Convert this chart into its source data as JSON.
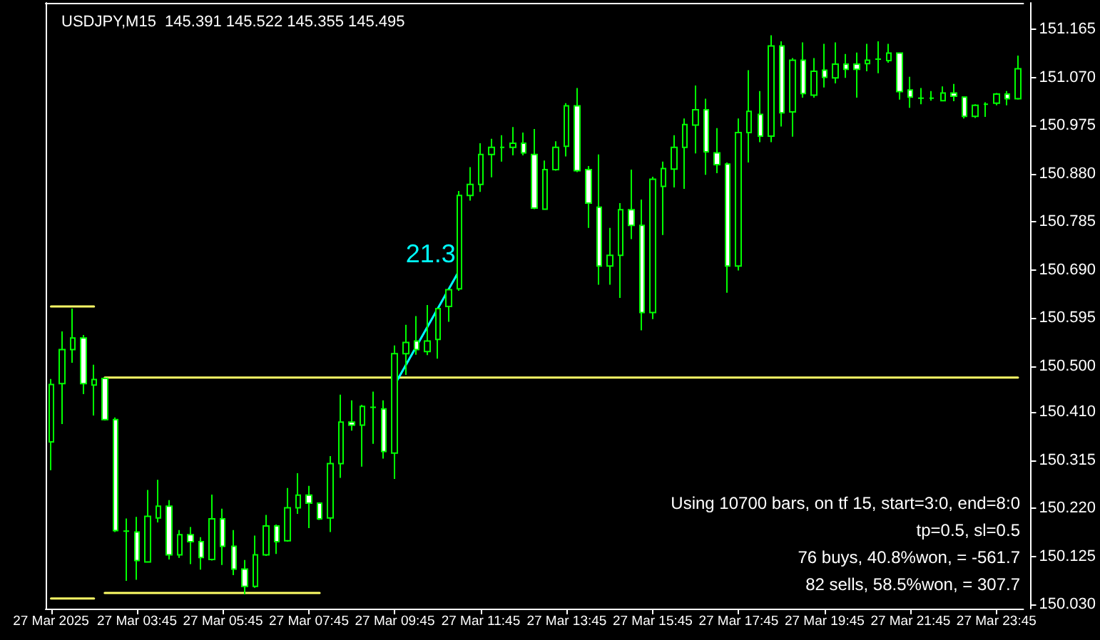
{
  "chart_data": {
    "type": "candlestick",
    "title": "USDJPY,M15  145.391 145.522 145.355 145.495",
    "color": "#00ff00",
    "marker": "none",
    "categories": [
      "27 Mar 2025",
      null,
      null,
      null,
      null,
      null,
      null,
      null,
      "27 Mar 03:45",
      null,
      null,
      null,
      null,
      null,
      null,
      null,
      "27 Mar 05:45",
      null,
      null,
      null,
      null,
      null,
      null,
      null,
      "27 Mar 07:45",
      null,
      null,
      null,
      null,
      null,
      null,
      null,
      "27 Mar 09:45",
      null,
      null,
      null,
      null,
      null,
      null,
      null,
      "27 Mar 11:45",
      null,
      null,
      null,
      null,
      null,
      null,
      null,
      "27 Mar 13:45",
      null,
      null,
      null,
      null,
      null,
      null,
      null,
      "27 Mar 15:45",
      null,
      null,
      null,
      null,
      null,
      null,
      null,
      "27 Mar 17:45",
      null,
      null,
      null,
      null,
      null,
      null,
      null,
      "27 Mar 19:45",
      null,
      null,
      null,
      null,
      null,
      null,
      null,
      "27 Mar 21:45",
      null,
      null,
      null,
      null,
      null,
      null,
      null,
      "27 Mar 23:45",
      null,
      null
    ],
    "ohlc": [
      [
        150.351,
        150.475,
        150.295,
        150.464
      ],
      [
        150.466,
        150.569,
        150.386,
        150.533
      ],
      [
        150.533,
        150.614,
        150.507,
        150.556
      ],
      [
        150.556,
        150.562,
        150.445,
        150.466
      ],
      [
        150.463,
        150.503,
        150.403,
        150.474
      ],
      [
        150.476,
        150.478,
        150.393,
        150.395
      ],
      [
        150.395,
        150.399,
        150.173,
        150.176
      ],
      [
        150.175,
        150.2,
        150.077,
        150.175
      ],
      [
        150.173,
        150.203,
        150.079,
        150.117
      ],
      [
        150.114,
        150.256,
        150.114,
        150.204
      ],
      [
        150.201,
        150.276,
        150.192,
        150.224
      ],
      [
        150.224,
        150.236,
        150.119,
        150.128
      ],
      [
        150.128,
        150.177,
        150.122,
        150.168
      ],
      [
        150.168,
        150.183,
        150.11,
        150.154
      ],
      [
        150.154,
        150.163,
        150.099,
        150.123
      ],
      [
        150.119,
        150.247,
        150.117,
        150.199
      ],
      [
        150.199,
        150.219,
        150.108,
        150.145
      ],
      [
        150.145,
        150.177,
        150.088,
        150.1
      ],
      [
        150.1,
        150.118,
        150.05,
        150.066
      ],
      [
        150.066,
        150.166,
        150.063,
        150.128
      ],
      [
        150.128,
        150.207,
        150.126,
        150.185
      ],
      [
        150.185,
        150.188,
        150.13,
        150.154
      ],
      [
        150.156,
        150.26,
        150.154,
        150.221
      ],
      [
        150.221,
        150.289,
        150.209,
        150.246
      ],
      [
        150.246,
        150.264,
        150.181,
        150.23
      ],
      [
        150.23,
        150.231,
        150.197,
        150.199
      ],
      [
        150.201,
        150.323,
        150.173,
        150.308
      ],
      [
        150.308,
        150.444,
        150.28,
        150.39
      ],
      [
        150.39,
        150.433,
        150.373,
        150.384
      ],
      [
        150.384,
        150.424,
        150.302,
        150.421
      ],
      [
        150.419,
        150.45,
        150.347,
        150.419
      ],
      [
        150.416,
        150.433,
        150.318,
        150.332
      ],
      [
        150.329,
        150.541,
        150.278,
        150.525
      ],
      [
        150.525,
        150.582,
        150.483,
        150.547
      ],
      [
        150.55,
        150.599,
        150.523,
        150.533
      ],
      [
        150.529,
        150.621,
        150.522,
        150.55
      ],
      [
        150.553,
        150.614,
        150.515,
        150.614
      ],
      [
        150.618,
        150.652,
        150.588,
        150.651
      ],
      [
        150.653,
        150.846,
        150.649,
        150.837
      ],
      [
        150.837,
        150.893,
        150.827,
        150.859
      ],
      [
        150.859,
        150.94,
        150.844,
        150.918
      ],
      [
        150.918,
        150.949,
        150.873,
        150.932
      ],
      [
        150.932,
        150.956,
        150.904,
        150.932
      ],
      [
        150.932,
        150.972,
        150.916,
        150.94
      ],
      [
        150.94,
        150.961,
        150.916,
        150.921
      ],
      [
        150.918,
        150.968,
        150.81,
        150.812
      ],
      [
        150.81,
        150.906,
        150.81,
        150.888
      ],
      [
        150.888,
        150.944,
        150.886,
        150.932
      ],
      [
        150.934,
        151.019,
        150.914,
        151.014
      ],
      [
        151.014,
        151.049,
        150.883,
        150.886
      ],
      [
        150.888,
        150.895,
        150.773,
        150.822
      ],
      [
        150.814,
        150.918,
        150.661,
        150.698
      ],
      [
        150.698,
        150.773,
        150.661,
        150.719
      ],
      [
        150.719,
        150.822,
        150.635,
        150.809
      ],
      [
        150.809,
        150.888,
        150.751,
        150.778
      ],
      [
        150.778,
        150.829,
        150.571,
        150.606
      ],
      [
        150.606,
        150.874,
        150.593,
        150.869
      ],
      [
        150.855,
        150.904,
        150.759,
        150.89
      ],
      [
        150.889,
        150.956,
        150.853,
        150.932
      ],
      [
        150.932,
        150.989,
        150.85,
        150.977
      ],
      [
        150.976,
        151.054,
        150.92,
        151.006
      ],
      [
        151.006,
        151.028,
        150.878,
        150.923
      ],
      [
        150.921,
        150.97,
        150.881,
        150.898
      ],
      [
        150.899,
        150.902,
        150.645,
        150.698
      ],
      [
        150.698,
        150.989,
        150.689,
        150.961
      ],
      [
        150.961,
        151.084,
        150.902,
        151.003
      ],
      [
        150.997,
        151.043,
        150.942,
        150.954
      ],
      [
        150.954,
        151.153,
        150.942,
        151.132
      ],
      [
        151.132,
        151.141,
        150.973,
        151.0
      ],
      [
        151.002,
        151.108,
        150.953,
        151.104
      ],
      [
        151.104,
        151.139,
        151.03,
        151.038
      ],
      [
        151.035,
        151.108,
        151.03,
        151.082
      ],
      [
        151.084,
        151.136,
        151.05,
        151.07
      ],
      [
        151.069,
        151.139,
        151.058,
        151.096
      ],
      [
        151.096,
        151.116,
        151.069,
        151.086
      ],
      [
        151.096,
        151.119,
        151.03,
        151.086
      ],
      [
        151.097,
        151.136,
        151.082,
        151.104
      ],
      [
        151.106,
        151.141,
        151.078,
        151.106
      ],
      [
        151.103,
        151.136,
        151.099,
        151.118
      ],
      [
        151.118,
        151.118,
        151.026,
        151.042
      ],
      [
        151.045,
        151.071,
        151.01,
        151.031
      ],
      [
        151.029,
        151.049,
        151.017,
        151.029
      ],
      [
        151.029,
        151.043,
        151.024,
        151.029
      ],
      [
        151.024,
        151.052,
        151.024,
        151.039
      ],
      [
        151.039,
        151.057,
        151.023,
        151.033
      ],
      [
        151.031,
        151.031,
        150.989,
        150.993
      ],
      [
        150.993,
        151.017,
        150.99,
        151.015
      ],
      [
        151.017,
        151.021,
        150.992,
        151.017
      ],
      [
        151.019,
        151.039,
        151.015,
        151.037
      ],
      [
        151.037,
        151.043,
        151.015,
        151.028
      ],
      [
        151.028,
        151.113,
        151.026,
        151.087
      ]
    ],
    "series": [
      {
        "type": "line",
        "color": "#ffff66",
        "values": [
          150.618,
          150.618,
          150.618,
          150.618,
          150.618,
          null,
          null,
          null,
          null,
          null,
          null,
          null,
          null,
          null,
          null,
          null,
          null,
          null,
          null,
          null,
          null,
          null,
          null,
          null,
          null,
          null,
          null,
          null,
          null,
          null,
          null,
          null,
          null,
          null,
          null,
          null,
          null,
          null,
          null,
          null,
          null,
          null,
          null,
          null,
          null,
          null,
          null,
          null,
          null,
          null,
          null,
          null,
          null,
          null,
          null,
          null,
          null,
          null,
          null,
          null,
          null,
          null,
          null,
          null,
          null,
          null,
          null,
          null,
          null,
          null,
          null,
          null,
          null,
          null,
          null,
          null,
          null,
          null,
          null,
          null,
          null,
          null,
          null,
          null,
          null,
          null,
          null,
          null,
          null,
          null,
          null
        ]
      },
      {
        "type": "line",
        "color": "#ffff66",
        "values": [
          150.042,
          150.042,
          150.042,
          150.042,
          150.042,
          null,
          null,
          null,
          null,
          null,
          null,
          null,
          null,
          null,
          null,
          null,
          null,
          null,
          null,
          null,
          null,
          null,
          null,
          null,
          null,
          null,
          null,
          null,
          null,
          null,
          null,
          null,
          null,
          null,
          null,
          null,
          null,
          null,
          null,
          null,
          null,
          null,
          null,
          null,
          null,
          null,
          null,
          null,
          null,
          null,
          null,
          null,
          null,
          null,
          null,
          null,
          null,
          null,
          null,
          null,
          null,
          null,
          null,
          null,
          null,
          null,
          null,
          null,
          null,
          null,
          null,
          null,
          null,
          null,
          null,
          null,
          null,
          null,
          null,
          null,
          null,
          null,
          null,
          null,
          null,
          null,
          null,
          null,
          null,
          null,
          null
        ]
      },
      {
        "type": "line",
        "color": "#ffff66",
        "values": [
          null,
          null,
          null,
          null,
          null,
          150.478,
          150.478,
          150.478,
          150.478,
          150.478,
          150.478,
          150.478,
          150.478,
          150.478,
          150.478,
          150.478,
          150.478,
          150.478,
          150.478,
          150.478,
          150.478,
          150.478,
          150.478,
          150.478,
          150.478,
          150.478,
          150.478,
          150.478,
          150.478,
          150.478,
          150.478,
          150.478,
          150.478,
          150.478,
          150.478,
          150.478,
          150.478,
          150.478,
          150.478,
          150.478,
          150.478,
          150.478,
          150.478,
          150.478,
          150.478,
          150.478,
          150.478,
          150.478,
          150.478,
          150.478,
          150.478,
          150.478,
          150.478,
          150.478,
          150.478,
          150.478,
          150.478,
          150.478,
          150.478,
          150.478,
          150.478,
          150.478,
          150.478,
          150.478,
          150.478,
          150.478,
          150.478,
          150.478,
          150.478,
          150.478,
          150.478,
          150.478,
          150.478,
          150.478,
          150.478,
          150.478,
          150.478,
          150.478,
          150.478,
          150.478,
          150.478,
          150.478,
          150.478,
          150.478,
          150.478,
          150.478,
          150.478,
          150.478,
          150.478,
          150.478,
          150.478
        ]
      },
      {
        "type": "line",
        "color": "#ffff66",
        "values": [
          null,
          null,
          null,
          null,
          null,
          150.053,
          150.053,
          150.053,
          150.053,
          150.053,
          150.053,
          150.053,
          150.053,
          150.053,
          150.053,
          150.053,
          150.053,
          150.053,
          150.053,
          150.053,
          150.053,
          150.053,
          150.053,
          150.053,
          150.053,
          150.053,
          null,
          null,
          null,
          null,
          null,
          null,
          null,
          null,
          null,
          null,
          null,
          null,
          null,
          null,
          null,
          null,
          null,
          null,
          null,
          null,
          null,
          null,
          null,
          null,
          null,
          null,
          null,
          null,
          null,
          null,
          null,
          null,
          null,
          null,
          null,
          null,
          null,
          null,
          null,
          null,
          null,
          null,
          null,
          null,
          null,
          null,
          null,
          null,
          null,
          null,
          null,
          null,
          null,
          null,
          null,
          null,
          null,
          null,
          null,
          null,
          null,
          null,
          null,
          null,
          null
        ]
      },
      {
        "type": "line",
        "color": "#00ffff",
        "values": [
          null,
          null,
          null,
          null,
          null,
          null,
          null,
          null,
          null,
          null,
          null,
          null,
          null,
          null,
          null,
          null,
          null,
          null,
          null,
          null,
          null,
          null,
          null,
          null,
          null,
          null,
          null,
          null,
          null,
          null,
          null,
          null,
          150.464,
          null,
          null,
          null,
          null,
          null,
          150.689,
          null,
          null,
          null,
          null,
          null,
          null,
          null,
          null,
          null,
          null,
          null,
          null,
          null,
          null,
          null,
          null,
          null,
          null,
          null,
          null,
          null,
          null,
          null,
          null,
          null,
          null,
          null,
          null,
          null,
          null,
          null,
          null,
          null,
          null,
          null,
          null,
          null,
          null,
          null,
          null,
          null,
          null,
          null,
          null,
          null,
          null,
          null,
          null,
          null,
          null,
          null,
          null
        ]
      }
    ],
    "annotations": [
      "21.3",
      "Using 10700 bars, on tf 15, start=3:0, end=8:0",
      "tp=0.5, sl=0.5",
      "76 buys, 40.8%won, = -561.7",
      "82 sells, 58.5%won, = 307.7"
    ],
    "ylim": [
      150.022,
      151.217
    ],
    "yticks": [
      151.165,
      {
        "value": 151.07,
        "label": "151.070"
      },
      150.975,
      {
        "value": 150.88,
        "label": "150.880"
      },
      150.785,
      {
        "value": 150.69,
        "label": "150.690"
      },
      150.595,
      {
        "value": 150.5,
        "label": "150.500"
      },
      {
        "value": 150.41,
        "label": "150.410"
      },
      150.315,
      {
        "value": 150.22,
        "label": "150.220"
      },
      150.125,
      {
        "value": 150.03,
        "label": "150.030"
      }
    ]
  }
}
